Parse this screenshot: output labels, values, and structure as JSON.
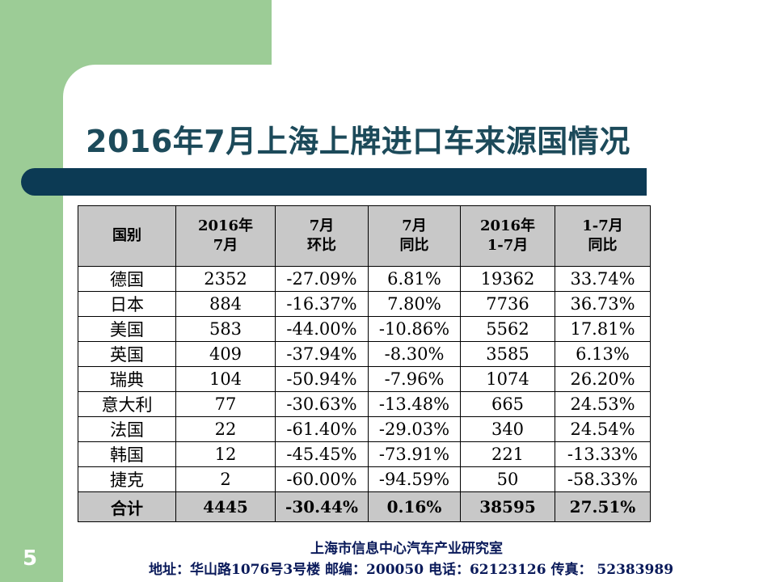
{
  "slide": {
    "title": "2016年7月上海上牌进口车来源国情况",
    "page_number": "5",
    "footer_org": "上海市信息中心汽车产业研究室",
    "footer_contact": "地址：华山路1076号3号楼   邮编：200050  电话：62123126  传真：  52383989"
  },
  "table": {
    "headers": [
      [
        "国别"
      ],
      [
        "2016年",
        "7月"
      ],
      [
        "7月",
        "环比"
      ],
      [
        "7月",
        "同比"
      ],
      [
        "2016年",
        "1-7月"
      ],
      [
        "1-7月",
        "同比"
      ]
    ],
    "rows": [
      [
        "德国",
        "2352",
        "-27.09%",
        "6.81%",
        "19362",
        "33.74%"
      ],
      [
        "日本",
        "884",
        "-16.37%",
        "7.80%",
        "7736",
        "36.73%"
      ],
      [
        "美国",
        "583",
        "-44.00%",
        "-10.86%",
        "5562",
        "17.81%"
      ],
      [
        "英国",
        "409",
        "-37.94%",
        "-8.30%",
        "3585",
        "6.13%"
      ],
      [
        "瑞典",
        "104",
        "-50.94%",
        "-7.96%",
        "1074",
        "26.20%"
      ],
      [
        "意大利",
        "77",
        "-30.63%",
        "-13.48%",
        "665",
        "24.53%"
      ],
      [
        "法国",
        "22",
        "-61.40%",
        "-29.03%",
        "340",
        "24.54%"
      ],
      [
        "韩国",
        "12",
        "-45.45%",
        "-73.91%",
        "221",
        "-13.33%"
      ],
      [
        "捷克",
        "2",
        "-60.00%",
        "-94.59%",
        "50",
        "-58.33%"
      ]
    ],
    "total": [
      "合计",
      "4445",
      "-30.44%",
      "0.16%",
      "38595",
      "27.51%"
    ]
  }
}
